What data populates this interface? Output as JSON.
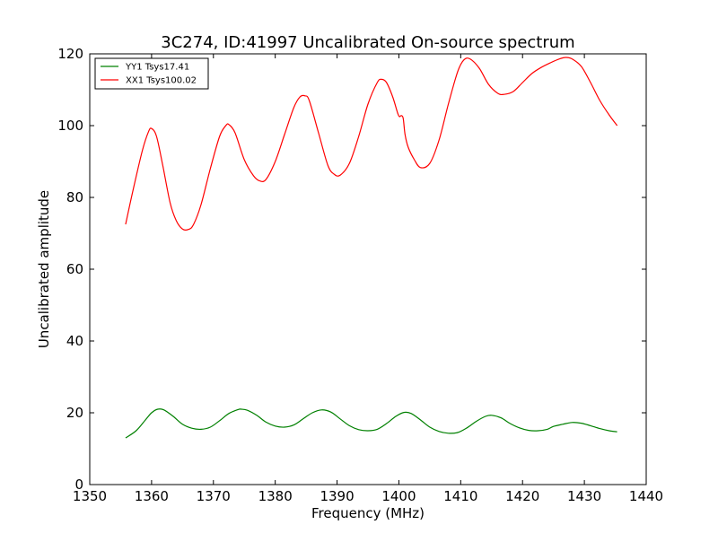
{
  "chart_data": {
    "type": "line",
    "title": "3C274, ID:41997 Uncalibrated On-source spectrum",
    "xlabel": "Frequency (MHz)",
    "ylabel": "Uncalibrated amplitude",
    "xlim": [
      1350,
      1440
    ],
    "ylim": [
      0,
      120
    ],
    "xticks": [
      1350,
      1360,
      1370,
      1380,
      1390,
      1400,
      1410,
      1420,
      1430,
      1440
    ],
    "yticks": [
      0,
      20,
      40,
      60,
      80,
      100,
      120
    ],
    "grid": false,
    "legend_position": "top-left",
    "series": [
      {
        "name": "YY1 Tsys17.41",
        "color": "#008000",
        "x": [
          1355.8,
          1357.5,
          1359.0,
          1360.0,
          1361.0,
          1362.0,
          1363.5,
          1365.0,
          1366.5,
          1368.0,
          1369.5,
          1371.0,
          1372.5,
          1374.0,
          1374.5,
          1375.5,
          1377.0,
          1378.5,
          1380.0,
          1381.5,
          1383.0,
          1384.5,
          1386.0,
          1387.5,
          1389.0,
          1390.5,
          1392.0,
          1393.5,
          1395.0,
          1396.5,
          1398.0,
          1399.5,
          1400.8,
          1402.0,
          1403.5,
          1405.0,
          1406.5,
          1408.0,
          1409.5,
          1411.0,
          1412.5,
          1414.0,
          1415.0,
          1416.5,
          1418.0,
          1419.5,
          1421.0,
          1422.5,
          1424.0,
          1425.0,
          1426.5,
          1428.0,
          1429.5,
          1431.0,
          1432.5,
          1434.0,
          1435.3
        ],
        "y": [
          13.0,
          15.0,
          18.0,
          20.0,
          21.0,
          20.8,
          19.0,
          16.8,
          15.7,
          15.4,
          16.0,
          17.8,
          19.8,
          20.9,
          21.0,
          20.7,
          19.3,
          17.4,
          16.3,
          16.0,
          16.6,
          18.3,
          20.0,
          20.8,
          20.2,
          18.3,
          16.4,
          15.3,
          15.0,
          15.4,
          17.0,
          19.0,
          20.1,
          19.8,
          18.0,
          16.0,
          14.8,
          14.3,
          14.5,
          15.8,
          17.6,
          19.0,
          19.3,
          18.6,
          17.0,
          15.8,
          15.1,
          15.0,
          15.4,
          16.2,
          16.8,
          17.3,
          17.1,
          16.4,
          15.6,
          15.0,
          14.7
        ]
      },
      {
        "name": "XX1 Tsys100.02",
        "color": "#ff0000",
        "x": [
          1355.8,
          1357.0,
          1358.5,
          1359.5,
          1360.0,
          1360.8,
          1361.8,
          1363.0,
          1364.0,
          1365.0,
          1366.0,
          1366.8,
          1368.0,
          1369.5,
          1371.0,
          1372.0,
          1372.5,
          1373.5,
          1375.0,
          1376.5,
          1377.5,
          1378.5,
          1380.0,
          1381.5,
          1383.0,
          1384.0,
          1384.8,
          1385.5,
          1387.0,
          1388.5,
          1389.5,
          1390.5,
          1392.0,
          1393.5,
          1395.0,
          1396.5,
          1397.2,
          1398.0,
          1399.0,
          1399.8,
          1400.1,
          1400.4,
          1400.7,
          1401.0,
          1401.5,
          1402.5,
          1403.5,
          1405.0,
          1406.5,
          1408.0,
          1409.5,
          1410.5,
          1411.5,
          1413.0,
          1414.5,
          1416.0,
          1417.0,
          1418.5,
          1420.0,
          1421.5,
          1423.0,
          1424.5,
          1426.0,
          1427.0,
          1428.0,
          1429.5,
          1431.0,
          1432.5,
          1434.0,
          1435.3
        ],
        "y": [
          72.5,
          82.0,
          93.0,
          98.3,
          99.2,
          97.0,
          89.0,
          78.5,
          73.5,
          71.2,
          71.1,
          72.5,
          78.0,
          88.0,
          97.0,
          100.0,
          100.3,
          98.0,
          90.5,
          86.0,
          84.6,
          85.0,
          90.0,
          97.5,
          105.0,
          108.0,
          108.3,
          107.0,
          98.0,
          89.0,
          86.5,
          86.2,
          89.5,
          97.0,
          106.0,
          112.0,
          112.9,
          112.0,
          108.0,
          103.5,
          102.5,
          102.8,
          102.0,
          97.5,
          94.0,
          90.5,
          88.3,
          89.5,
          96.0,
          106.0,
          115.0,
          118.3,
          118.6,
          116.0,
          111.5,
          109.0,
          108.7,
          109.5,
          112.0,
          114.5,
          116.2,
          117.5,
          118.6,
          119.0,
          118.6,
          116.5,
          112.0,
          107.0,
          103.0,
          100.0
        ]
      }
    ]
  }
}
